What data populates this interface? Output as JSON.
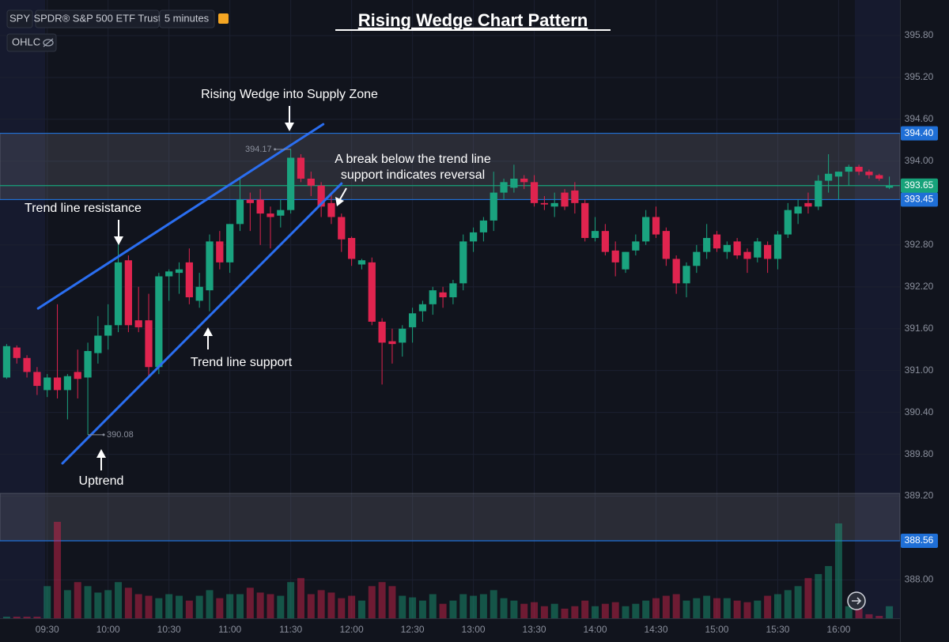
{
  "chart_data": {
    "type": "candlestick",
    "title": "Rising Wedge Chart Pattern",
    "symbol": "SPY",
    "instrument": "SPDR® S&P 500 ETF Trust",
    "interval": "5 minutes",
    "indicator": "OHLC",
    "categories": [
      null,
      null,
      null,
      null,
      "09:30",
      null,
      null,
      null,
      null,
      null,
      "10:00",
      null,
      null,
      null,
      null,
      null,
      "10:30",
      null,
      null,
      null,
      null,
      null,
      "11:00",
      null,
      null,
      null,
      null,
      null,
      "11:30",
      null,
      null,
      null,
      null,
      null,
      "12:00",
      null,
      null,
      null,
      null,
      null,
      "12:30",
      null,
      null,
      null,
      null,
      null,
      "13:00",
      null,
      null,
      null,
      null,
      null,
      "13:30",
      null,
      null,
      null,
      null,
      null,
      "14:00",
      null,
      null,
      null,
      null,
      null,
      "14:30",
      null,
      null,
      null,
      null,
      null,
      "15:00",
      null,
      null,
      null,
      null,
      null,
      "15:30",
      null,
      null,
      null,
      null,
      null,
      "16:00",
      null,
      null,
      null,
      null,
      null
    ],
    "open": [
      390.9,
      391.33,
      391.18,
      390.98,
      390.72,
      390.9,
      390.72,
      390.98,
      390.9,
      391.25,
      391.5,
      391.65,
      392.58,
      391.72,
      391.72,
      391.05,
      392.35,
      392.4,
      392.55,
      392.0,
      392.15,
      392.85,
      392.55,
      393.1,
      393.45,
      393.45,
      393.25,
      393.22,
      393.3,
      394.05,
      393.75,
      393.65,
      393.4,
      393.2,
      392.9,
      392.52,
      392.55,
      391.7,
      391.42,
      391.4,
      391.62,
      391.85,
      391.95,
      392.12,
      392.05,
      392.25,
      392.85,
      392.98,
      393.15,
      393.55,
      393.62,
      393.75,
      393.7,
      393.4,
      393.35,
      393.55,
      393.58,
      393.4,
      392.9,
      393.0,
      392.72,
      392.45,
      392.72,
      392.85,
      393.2,
      393.0,
      392.6,
      392.25,
      392.5,
      392.7,
      392.95,
      392.7,
      392.85,
      392.7,
      392.62,
      392.8,
      392.6,
      392.95,
      393.25,
      393.4,
      393.35,
      393.72,
      393.78,
      393.85,
      393.92,
      393.85,
      393.8,
      393.62
    ],
    "high": [
      391.38,
      391.36,
      391.22,
      391.05,
      390.95,
      391.95,
      390.95,
      391.3,
      391.4,
      391.78,
      391.95,
      392.9,
      392.65,
      392.2,
      392.1,
      392.4,
      392.45,
      392.55,
      392.75,
      392.4,
      392.95,
      393.0,
      393.1,
      393.75,
      393.55,
      393.6,
      393.35,
      393.45,
      394.17,
      394.1,
      393.85,
      393.7,
      393.55,
      393.25,
      392.92,
      392.6,
      392.62,
      391.75,
      391.6,
      391.65,
      391.9,
      392.0,
      392.2,
      392.2,
      392.3,
      392.95,
      393.05,
      393.2,
      393.85,
      393.75,
      393.95,
      393.8,
      393.8,
      393.5,
      393.55,
      393.6,
      393.7,
      393.45,
      393.2,
      393.1,
      392.85,
      392.7,
      392.95,
      393.3,
      393.35,
      393.05,
      392.65,
      392.55,
      392.8,
      393.1,
      393.0,
      392.85,
      392.9,
      392.75,
      392.9,
      392.85,
      393.0,
      393.4,
      393.45,
      393.55,
      393.8,
      394.1,
      393.85,
      393.95,
      393.95,
      393.88,
      393.82,
      393.78
    ],
    "low": [
      390.88,
      391.1,
      390.9,
      390.65,
      390.62,
      390.6,
      390.3,
      390.6,
      390.08,
      391.1,
      391.3,
      391.55,
      391.55,
      391.55,
      390.9,
      390.95,
      392.0,
      392.1,
      391.95,
      391.9,
      391.85,
      392.45,
      392.4,
      393.0,
      393.0,
      392.8,
      392.75,
      393.05,
      393.25,
      393.7,
      393.5,
      393.2,
      393.1,
      392.7,
      392.5,
      392.45,
      391.65,
      390.8,
      391.1,
      391.2,
      391.4,
      391.7,
      391.8,
      391.9,
      391.95,
      392.15,
      392.7,
      392.85,
      393.0,
      393.45,
      393.55,
      393.6,
      393.35,
      393.3,
      393.2,
      393.3,
      393.25,
      392.85,
      392.85,
      392.65,
      392.35,
      392.4,
      392.65,
      392.8,
      392.9,
      392.5,
      392.1,
      392.05,
      392.4,
      392.6,
      392.7,
      392.6,
      392.6,
      392.4,
      392.55,
      392.4,
      392.45,
      392.9,
      393.1,
      393.25,
      393.3,
      393.55,
      393.45,
      393.65,
      393.8,
      393.75,
      393.72,
      393.6
    ],
    "close": [
      391.35,
      391.18,
      390.98,
      390.78,
      390.9,
      390.72,
      390.92,
      390.88,
      391.28,
      391.5,
      391.65,
      392.55,
      391.65,
      391.62,
      391.05,
      392.35,
      392.42,
      392.45,
      392.05,
      392.2,
      392.85,
      392.55,
      393.1,
      393.45,
      393.4,
      393.25,
      393.2,
      393.3,
      394.05,
      393.75,
      393.65,
      393.35,
      393.2,
      392.88,
      392.6,
      392.58,
      391.7,
      391.4,
      391.38,
      391.6,
      391.82,
      391.95,
      392.15,
      392.05,
      392.25,
      392.85,
      392.98,
      393.15,
      393.55,
      393.7,
      393.75,
      393.7,
      393.4,
      393.38,
      393.4,
      393.35,
      393.4,
      392.9,
      393.0,
      392.7,
      392.55,
      392.7,
      392.85,
      393.2,
      392.95,
      392.6,
      392.25,
      392.5,
      392.7,
      392.9,
      392.75,
      392.8,
      392.65,
      392.6,
      392.85,
      392.6,
      392.95,
      393.3,
      393.35,
      393.35,
      393.72,
      393.82,
      393.85,
      393.92,
      393.85,
      393.8,
      393.75,
      393.65
    ],
    "volume": [
      2,
      2,
      2,
      2,
      40,
      120,
      35,
      45,
      40,
      32,
      35,
      45,
      38,
      30,
      28,
      25,
      30,
      28,
      22,
      28,
      35,
      25,
      30,
      30,
      38,
      32,
      30,
      28,
      45,
      50,
      30,
      35,
      32,
      25,
      28,
      22,
      40,
      45,
      40,
      28,
      26,
      22,
      30,
      18,
      22,
      30,
      28,
      30,
      35,
      25,
      22,
      18,
      20,
      15,
      18,
      12,
      15,
      22,
      15,
      18,
      20,
      15,
      18,
      22,
      25,
      28,
      30,
      22,
      25,
      28,
      25,
      25,
      22,
      20,
      22,
      28,
      30,
      35,
      40,
      50,
      55,
      65,
      118,
      15,
      12,
      5,
      3,
      15
    ],
    "up_color": "#1aa37f",
    "down_color": "#e0244f",
    "ylim": [
      387.45,
      396.31
    ],
    "yticks": [
      {
        "value": 395.8,
        "label": "395.80"
      },
      {
        "value": 395.2,
        "label": "395.20"
      },
      {
        "value": 394.6,
        "label": "394.60"
      },
      {
        "value": 394.0,
        "label": "394.00"
      },
      {
        "value": 392.8,
        "label": "392.80"
      },
      {
        "value": 392.2,
        "label": "392.20"
      },
      {
        "value": 391.6,
        "label": "391.60"
      },
      {
        "value": 391.0,
        "label": "391.00"
      },
      {
        "value": 390.4,
        "label": "390.40"
      },
      {
        "value": 389.8,
        "label": "389.80"
      },
      {
        "value": 389.2,
        "label": "389.20"
      },
      {
        "value": 388.0,
        "label": "388.00"
      }
    ],
    "grid": true,
    "zones": [
      [
        393.45,
        394.4
      ],
      [
        388.56,
        389.24
      ]
    ],
    "price_lines": [
      {
        "value": 394.4,
        "label": "394.40",
        "color": "#1f6fd6"
      },
      {
        "value": 393.45,
        "label": "393.45",
        "color": "#1f6fd6"
      },
      {
        "value": 388.56,
        "label": "388.56",
        "color": "#1f6fd6"
      },
      {
        "value": 393.65,
        "label": "393.65",
        "color": "#17a27a"
      }
    ],
    "markers": [
      {
        "value": 394.17,
        "index": 28
      },
      {
        "value": 390.08,
        "index": 8
      }
    ],
    "trend_lines": [
      {
        "start": [
          3.1,
          391.89
        ],
        "end": [
          31.2,
          394.53
        ]
      },
      {
        "start": [
          5.5,
          389.67
        ],
        "end": [
          33.0,
          393.68
        ]
      }
    ],
    "annotations": {
      "wedge": "Rising Wedge into Supply Zone",
      "resistance": "Trend line resistance",
      "break": [
        "A break below the trend line",
        "support indicates reversal"
      ],
      "support": "Trend line support",
      "uptrend": "Uptrend"
    }
  }
}
